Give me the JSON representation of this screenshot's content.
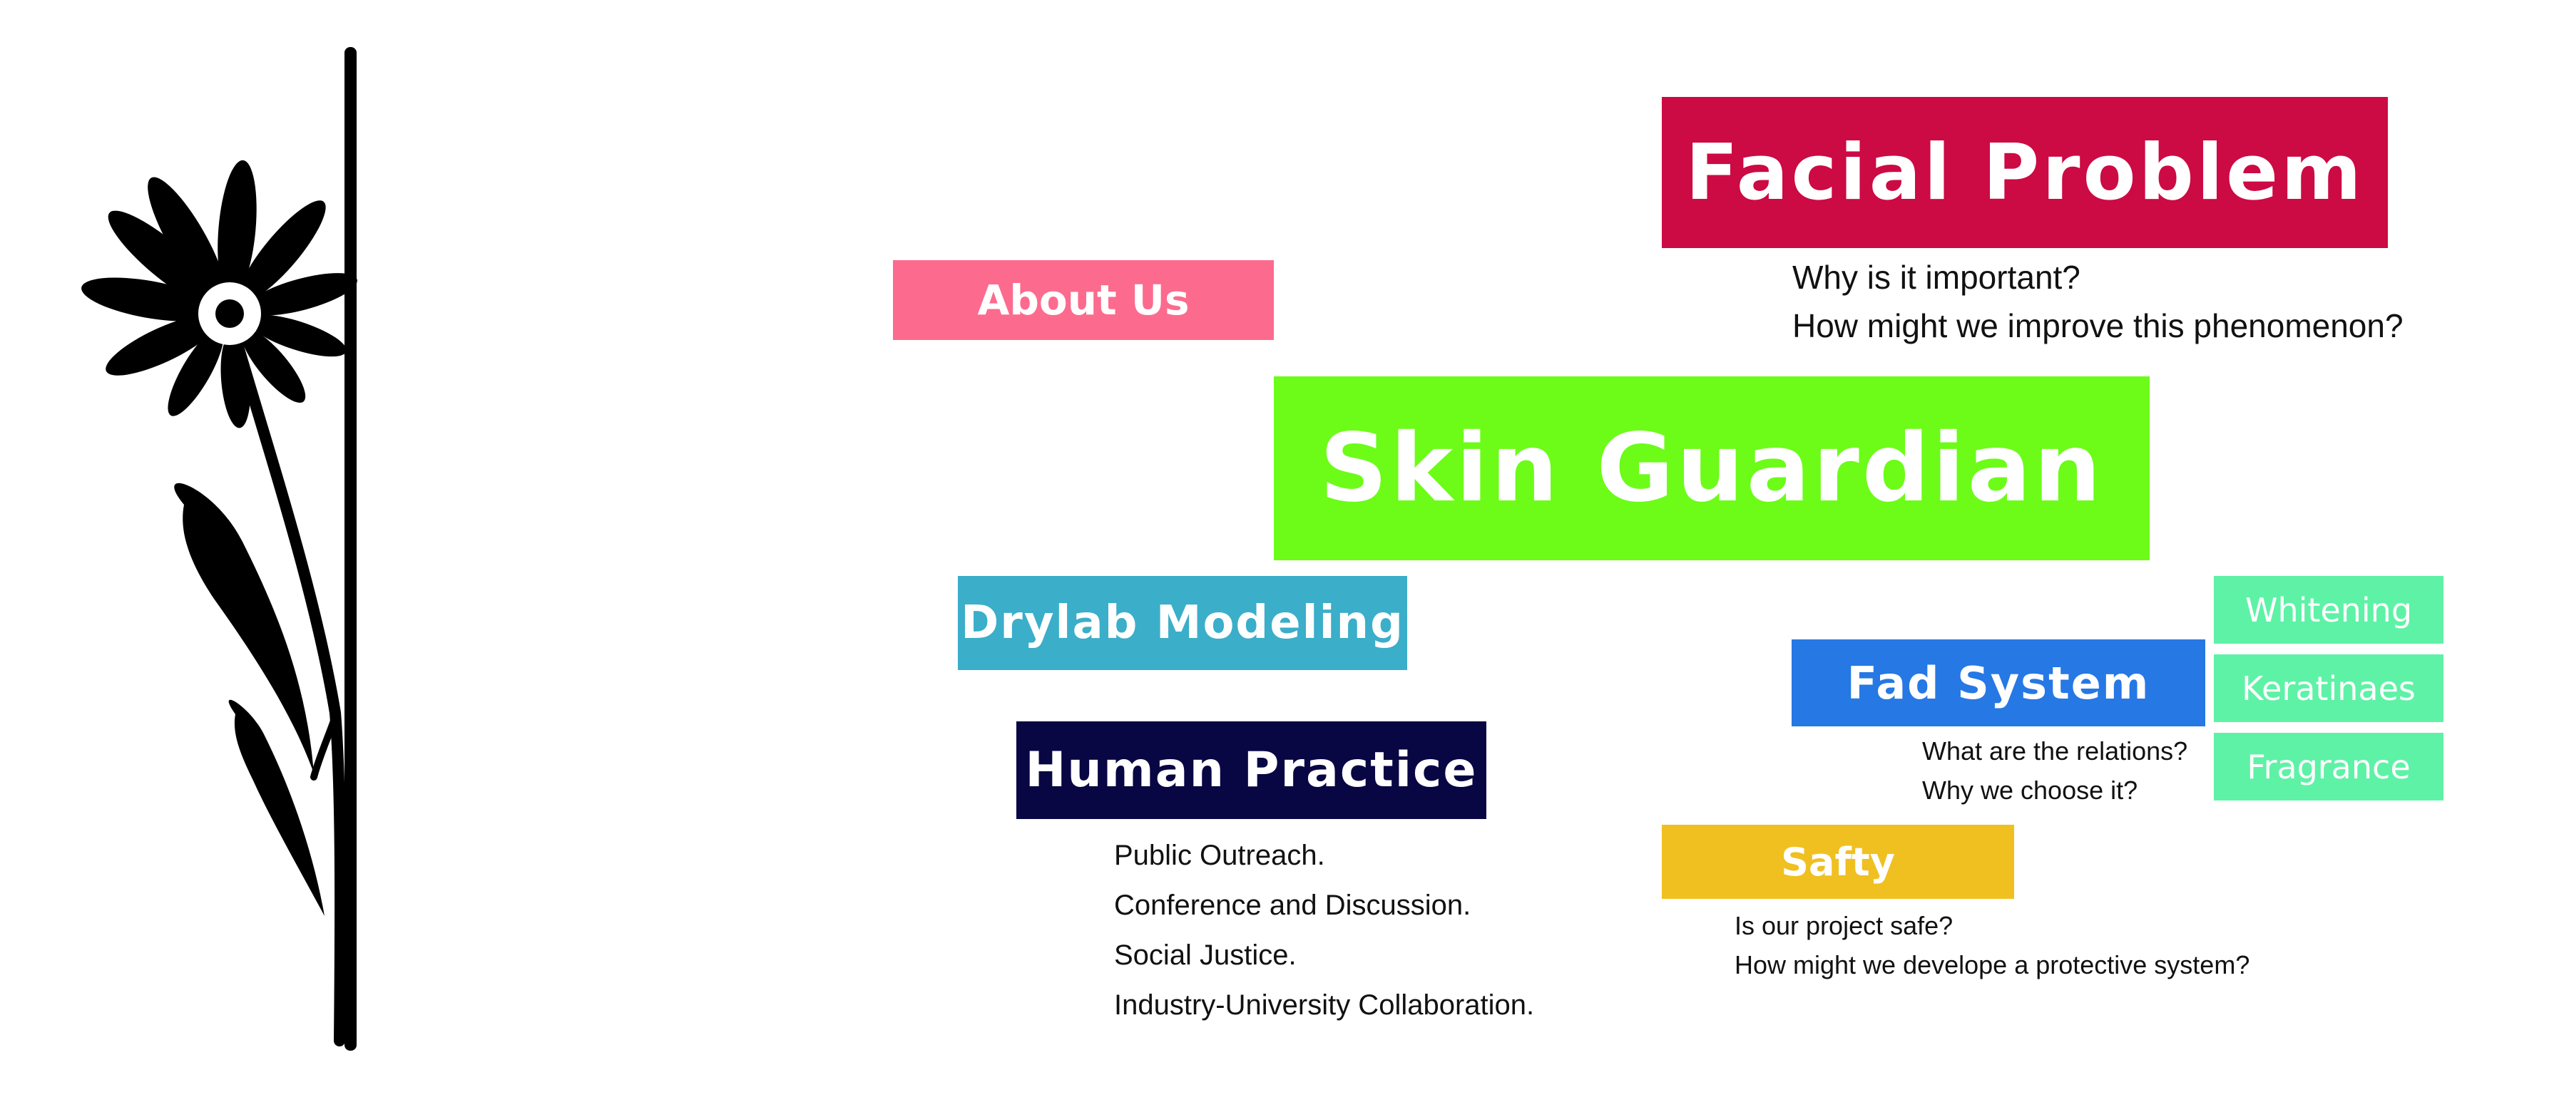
{
  "menu": {
    "facial_problem": "Facial Problem",
    "about_us": "About Us",
    "skin_guardian": "Skin Guardian",
    "drylab_modeling": "Drylab Modeling",
    "human_practice": "Human Practice",
    "fad_system": "Fad System",
    "safty": "Safty",
    "whitening": "Whitening",
    "keratinaes": "Keratinaes",
    "fragrance": "Fragrance"
  },
  "notes": {
    "facial_problem": [
      "Why is it important?",
      "How might we improve this phenomenon?"
    ],
    "fad_system": [
      "What are the relations?",
      "Why we choose it?"
    ],
    "safty": [
      "Is our project safe?",
      "How might we develope a protective system?"
    ],
    "human_practice": [
      "Public Outreach.",
      "Conference and Discussion.",
      "Social Justice.",
      "Industry-University Collaboration."
    ]
  },
  "colors": {
    "facial_problem": "#cc0a43",
    "about_us": "#fc6b8d",
    "skin_guardian": "#6cfc18",
    "drylab_modeling": "#3baec9",
    "human_practice": "#090644",
    "fad_system": "#2678e4",
    "safty": "#f0c021",
    "side_items": "#5ef2a6",
    "flower": "#000000"
  },
  "icons": {
    "flower": "daisy-flower-icon"
  }
}
